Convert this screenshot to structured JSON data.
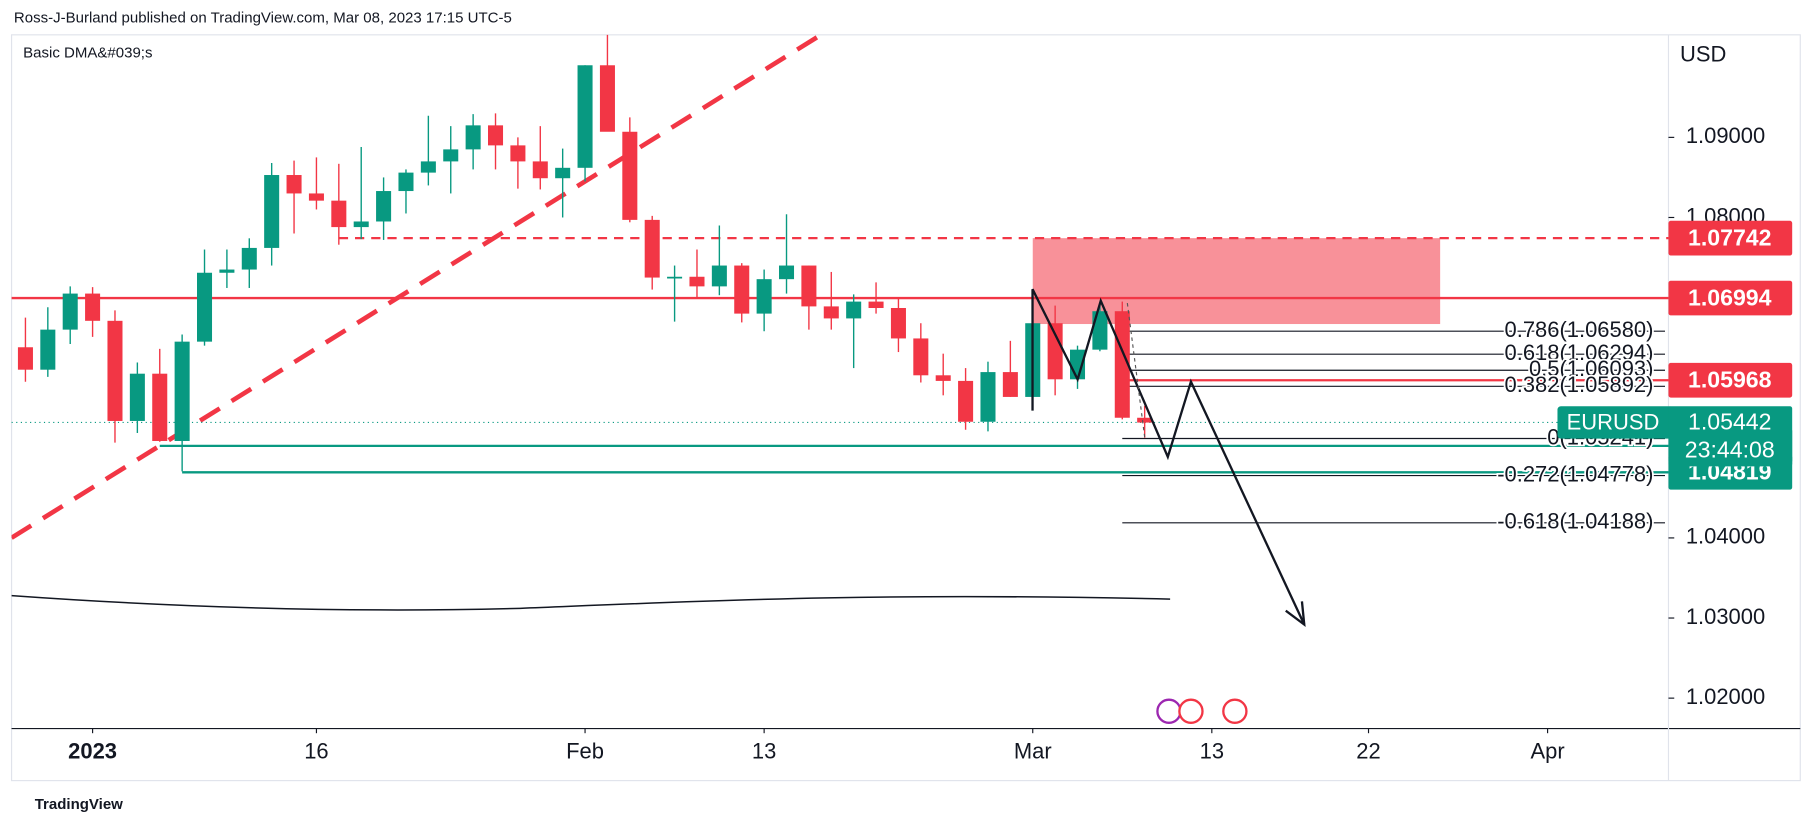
{
  "chart_data": {
    "type": "candlestick",
    "header": "Ross-J-Burland published on TradingView.com, Mar 08, 2023 17:15 UTC-5",
    "indicator": "Basic DMA&#039;s",
    "currency": "USD",
    "footer": "TradingView",
    "up_color": "#089981",
    "down_color": "#f23645",
    "xlim": [
      -3.62,
      70.4
    ],
    "ylim": [
      1.0162,
      1.1028
    ],
    "xticks": [
      {
        "value": 0,
        "label": "2023"
      },
      {
        "value": 10,
        "label": "16"
      },
      {
        "value": 22,
        "label": "Feb"
      },
      {
        "value": 30,
        "label": "13"
      },
      {
        "value": 42,
        "label": "Mar"
      },
      {
        "value": 50,
        "label": "13"
      },
      {
        "value": 57,
        "label": "22"
      },
      {
        "value": 65,
        "label": "Apr"
      }
    ],
    "yticks": [
      {
        "value": 1.09,
        "label": "1.09000"
      },
      {
        "value": 1.08,
        "label": "1.08000"
      },
      {
        "value": 1.04,
        "label": "1.04000"
      },
      {
        "value": 1.03,
        "label": "1.03000"
      },
      {
        "value": 1.02,
        "label": "1.02000"
      }
    ],
    "candles": {
      "x": [
        -3,
        -2,
        -1,
        0,
        1,
        2,
        3,
        4,
        5,
        6,
        7,
        8,
        9,
        10,
        11,
        12,
        13,
        14,
        15,
        16,
        17,
        18,
        19,
        20,
        21,
        22,
        23,
        24,
        25,
        26,
        27,
        28,
        29,
        30,
        31,
        32,
        33,
        34,
        35,
        36,
        37,
        38,
        39,
        40,
        41,
        42,
        43,
        44,
        45,
        46,
        47
      ],
      "open": [
        1.0638,
        1.061,
        1.066,
        1.0705,
        1.0671,
        1.0546,
        1.0605,
        1.0521,
        1.0645,
        1.0731,
        1.0735,
        1.0762,
        1.0853,
        1.083,
        1.0821,
        1.0788,
        1.0795,
        1.0833,
        1.0856,
        1.087,
        1.0885,
        1.0915,
        1.089,
        1.087,
        1.0849,
        1.0862,
        1.099,
        1.0907,
        1.0797,
        1.0725,
        1.0726,
        1.0714,
        1.074,
        1.068,
        1.0723,
        1.074,
        1.0689,
        1.0674,
        1.0695,
        1.0687,
        1.0649,
        1.0603,
        1.0596,
        1.0545,
        1.0607,
        1.0576,
        1.0668,
        1.0598,
        1.0635,
        1.0683,
        1.055
      ],
      "high": [
        1.0675,
        1.0688,
        1.0714,
        1.0713,
        1.0684,
        1.0619,
        1.0636,
        1.0654,
        1.076,
        1.076,
        1.0774,
        1.0868,
        1.0871,
        1.0875,
        1.0867,
        1.0888,
        1.085,
        1.086,
        1.0927,
        1.0914,
        1.0929,
        1.093,
        1.09,
        1.0914,
        1.0886,
        1.099,
        1.1033,
        1.0925,
        1.0802,
        1.074,
        1.076,
        1.079,
        1.0743,
        1.0735,
        1.0804,
        1.074,
        1.0732,
        1.0704,
        1.0719,
        1.07,
        1.0668,
        1.063,
        1.0612,
        1.062,
        1.0646,
        1.0692,
        1.069,
        1.064,
        1.0694,
        1.0695,
        1.0565
      ],
      "low": [
        1.0595,
        1.0601,
        1.0642,
        1.0651,
        1.0519,
        1.0531,
        1.052,
        1.0483,
        1.064,
        1.0712,
        1.0712,
        1.074,
        1.078,
        1.081,
        1.0766,
        1.0773,
        1.0772,
        1.0805,
        1.084,
        1.083,
        1.086,
        1.086,
        1.0836,
        1.0835,
        1.08,
        1.0845,
        1.0908,
        1.0794,
        1.071,
        1.067,
        1.07,
        1.0703,
        1.0669,
        1.0658,
        1.0705,
        1.066,
        1.066,
        1.0612,
        1.068,
        1.0632,
        1.0594,
        1.0578,
        1.0535,
        1.0533,
        1.0576,
        1.0565,
        1.0578,
        1.0586,
        1.0633,
        1.0548,
        1.0525
      ],
      "close": [
        1.061,
        1.066,
        1.0705,
        1.0671,
        1.0546,
        1.0605,
        1.0521,
        1.0645,
        1.0731,
        1.0735,
        1.0762,
        1.0853,
        1.083,
        1.0821,
        1.0788,
        1.0795,
        1.0833,
        1.0856,
        1.087,
        1.0885,
        1.0915,
        1.089,
        1.087,
        1.0849,
        1.0862,
        1.099,
        1.0907,
        1.0797,
        1.0725,
        1.0726,
        1.0714,
        1.074,
        1.068,
        1.0723,
        1.074,
        1.0689,
        1.0674,
        1.0695,
        1.0687,
        1.0649,
        1.0603,
        1.0596,
        1.0545,
        1.0607,
        1.0576,
        1.0668,
        1.0598,
        1.0635,
        1.0683,
        1.055,
        1.0544
      ]
    },
    "zone": {
      "top": 1.07742,
      "bottom": 1.0667,
      "start": 42,
      "end": 60.2,
      "color": "#f23645"
    },
    "levels": [
      {
        "value": 1.07742,
        "color": "#f23645",
        "dashed": true,
        "start": 11
      },
      {
        "value": 1.06994,
        "color": "#f23645",
        "dashed": false,
        "start": -3.62
      },
      {
        "value": 1.05968,
        "color": "#f23645",
        "dashed": false,
        "start": 46
      },
      {
        "value": 1.05149,
        "color": "#089981",
        "dashed": false,
        "start": 3
      },
      {
        "value": 1.04819,
        "color": "#089981",
        "dashed": false,
        "start": 4
      }
    ],
    "last": {
      "name": "EURUSD",
      "value": 1.05442,
      "countdown": "23:44:08",
      "color": "#089981"
    },
    "fib": {
      "start": 46,
      "levels": [
        {
          "label": "0.786(1.06580)",
          "value": 1.0658
        },
        {
          "label": "0.618(1.06294)",
          "value": 1.06294
        },
        {
          "label": "0.5(1.06093)",
          "value": 1.06093
        },
        {
          "label": "0.382(1.05892)",
          "value": 1.05892
        },
        {
          "label": "0(1.05241)",
          "value": 1.05241
        },
        {
          "label": "-0.272(1.04778)",
          "value": 1.04778
        },
        {
          "label": "-0.618(1.04188)",
          "value": 1.04188
        }
      ]
    }
  }
}
